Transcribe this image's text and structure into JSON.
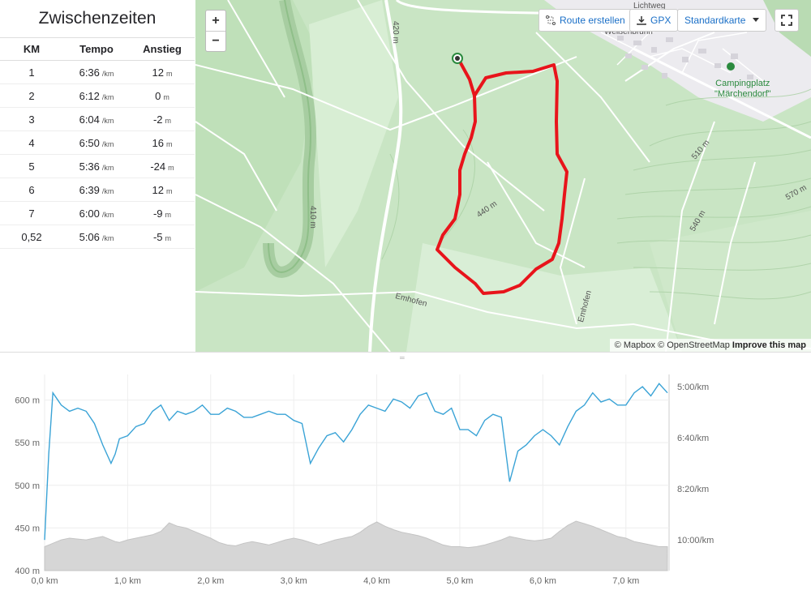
{
  "splits": {
    "title": "Zwischenzeiten",
    "headers": {
      "km": "KM",
      "tempo": "Tempo",
      "anstieg": "Anstieg"
    },
    "tempo_unit": "/km",
    "elev_unit": "m",
    "rows": [
      {
        "km": "1",
        "tempo": "6:36",
        "anstieg": "12"
      },
      {
        "km": "2",
        "tempo": "6:12",
        "anstieg": "0"
      },
      {
        "km": "3",
        "tempo": "6:04",
        "anstieg": "-2"
      },
      {
        "km": "4",
        "tempo": "6:50",
        "anstieg": "16"
      },
      {
        "km": "5",
        "tempo": "5:36",
        "anstieg": "-24"
      },
      {
        "km": "6",
        "tempo": "6:39",
        "anstieg": "12"
      },
      {
        "km": "7",
        "tempo": "6:00",
        "anstieg": "-9"
      },
      {
        "km": "0,52",
        "tempo": "5:06",
        "anstieg": "-5"
      }
    ]
  },
  "map": {
    "route_button": "Route erstellen",
    "gpx_button": "GPX",
    "style_select": "Standardkarte",
    "zoom_in": "+",
    "zoom_out": "−",
    "attribution_mapbox": "© Mapbox",
    "attribution_osm": "© OpenStreetMap",
    "attribution_improve": "Improve this map",
    "labels": {
      "campingplatz_1": "Campingplatz",
      "campingplatz_2": "\"Märchendorf\"",
      "emhofen_1": "Emhofen",
      "emhofen_2": "Emhofen",
      "c420": "420 m",
      "c410": "410 m",
      "c440": "440 m",
      "c510": "510 m",
      "c540": "540 m",
      "c570": "570 m",
      "weissenbrunn": "Weißenbrunn",
      "road_top": "Lichtweg"
    },
    "colors": {
      "route": "#e8141b",
      "forest": "#c8e5c3",
      "road": "#ffffff"
    }
  },
  "chart_data": {
    "type": "line",
    "x": [
      0,
      0.05,
      0.1,
      0.15,
      0.2,
      0.3,
      0.4,
      0.5,
      0.6,
      0.7,
      0.8,
      0.85,
      0.9,
      1.0,
      1.1,
      1.2,
      1.3,
      1.4,
      1.5,
      1.6,
      1.7,
      1.8,
      1.9,
      2.0,
      2.1,
      2.2,
      2.3,
      2.4,
      2.5,
      2.6,
      2.7,
      2.8,
      2.9,
      3.0,
      3.1,
      3.2,
      3.3,
      3.4,
      3.5,
      3.6,
      3.7,
      3.8,
      3.9,
      4.0,
      4.1,
      4.2,
      4.3,
      4.4,
      4.5,
      4.6,
      4.7,
      4.8,
      4.9,
      5.0,
      5.1,
      5.2,
      5.3,
      5.4,
      5.5,
      5.6,
      5.7,
      5.8,
      5.9,
      6.0,
      6.1,
      6.2,
      6.3,
      6.4,
      6.5,
      6.6,
      6.7,
      6.8,
      6.9,
      7.0,
      7.1,
      7.2,
      7.3,
      7.4,
      7.5
    ],
    "series": [
      {
        "values": [
          428,
          430,
          432,
          434,
          436,
          438,
          437,
          436,
          438,
          440,
          436,
          434,
          433,
          436,
          438,
          440,
          442,
          446,
          456,
          452,
          450,
          446,
          442,
          438,
          433,
          430,
          429,
          432,
          434,
          432,
          430,
          433,
          436,
          438,
          436,
          433,
          430,
          433,
          436,
          438,
          440,
          445,
          452,
          457,
          452,
          448,
          445,
          443,
          441,
          438,
          434,
          430,
          428,
          428,
          427,
          428,
          430,
          433,
          436,
          440,
          438,
          436,
          435,
          436,
          438,
          446,
          453,
          458,
          455,
          452,
          448,
          444,
          440,
          438,
          434,
          432,
          430,
          428,
          428
        ]
      },
      {
        "values": [
          10.0,
          7.2,
          5.2,
          5.4,
          5.6,
          5.8,
          5.7,
          5.8,
          6.2,
          6.9,
          7.5,
          7.2,
          6.7,
          6.6,
          6.3,
          6.2,
          5.8,
          5.6,
          6.1,
          5.8,
          5.9,
          5.8,
          5.6,
          5.9,
          5.9,
          5.7,
          5.8,
          6.0,
          6.0,
          5.9,
          5.8,
          5.9,
          5.9,
          6.1,
          6.2,
          7.5,
          7.0,
          6.6,
          6.5,
          6.8,
          6.4,
          5.9,
          5.6,
          5.7,
          5.8,
          5.4,
          5.5,
          5.7,
          5.3,
          5.2,
          5.8,
          5.9,
          5.7,
          6.4,
          6.4,
          6.6,
          6.1,
          5.9,
          6.0,
          8.1,
          7.1,
          6.9,
          6.6,
          6.4,
          6.6,
          6.9,
          6.3,
          5.8,
          5.6,
          5.2,
          5.5,
          5.4,
          5.6,
          5.6,
          5.2,
          5.0,
          5.3,
          4.9,
          5.2
        ]
      }
    ],
    "xlabel": "",
    "ylabel": "",
    "x_ticks": [
      "0,0 km",
      "1,0 km",
      "2,0 km",
      "3,0 km",
      "4,0 km",
      "5,0 km",
      "6,0 km",
      "7,0 km"
    ],
    "y_ticks_left": [
      "400 m",
      "450 m",
      "500 m",
      "550 m",
      "600 m"
    ],
    "y_ticks_right": [
      "5:00/km",
      "6:40/km",
      "8:20/km",
      "10:00/km"
    ],
    "xlim": [
      0,
      7.52
    ],
    "ylim_left": [
      400,
      630
    ],
    "ylim_right_pace_min_per_km": [
      11.0,
      4.6
    ],
    "grid": true,
    "colors": {
      "pace": "#3aa3d6",
      "elevation": "#d6d6d6"
    }
  }
}
